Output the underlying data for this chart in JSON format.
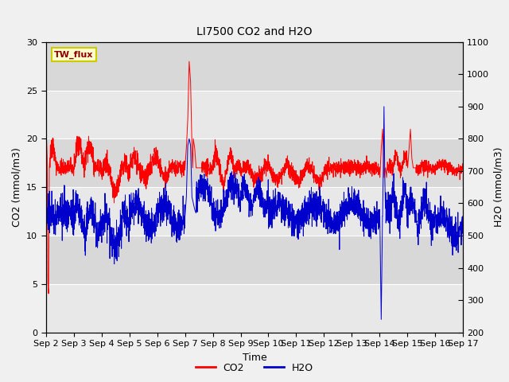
{
  "title": "LI7500 CO2 and H2O",
  "xlabel": "Time",
  "ylabel_left": "CO2 (mmol/m3)",
  "ylabel_right": "H2O (mmol/m3)",
  "site_label": "TW_flux",
  "ylim_left": [
    0,
    30
  ],
  "ylim_right": [
    200,
    1100
  ],
  "co2_color": "#ff0000",
  "h2o_color": "#0000cc",
  "bg_color": "#f0f0f0",
  "plot_bg_light": "#e8e8e8",
  "plot_bg_dark": "#d8d8d8",
  "legend_co2": "CO2",
  "legend_h2o": "H2O",
  "xtick_labels": [
    "Sep 2",
    "Sep 3",
    "Sep 4",
    "Sep 5",
    "Sep 6",
    "Sep 7",
    "Sep 8",
    "Sep 9",
    "Sep 10",
    "Sep 11",
    "Sep 12",
    "Sep 13",
    "Sep 14",
    "Sep 15",
    "Sep 16",
    "Sep 17"
  ],
  "yticks_left": [
    0,
    5,
    10,
    15,
    20,
    25,
    30
  ],
  "yticks_right": [
    200,
    300,
    400,
    500,
    600,
    700,
    800,
    900,
    1000,
    1100
  ],
  "figsize": [
    6.4,
    4.8
  ],
  "dpi": 100
}
